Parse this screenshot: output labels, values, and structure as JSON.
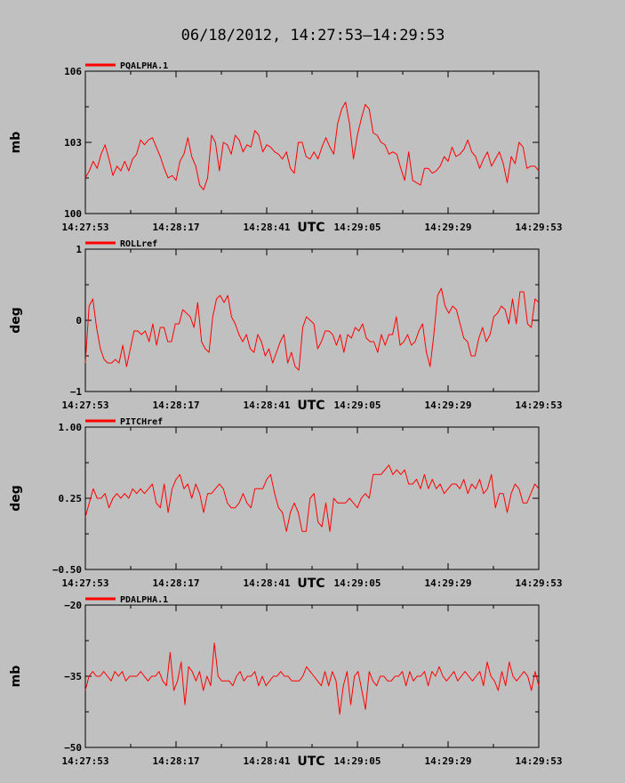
{
  "page_title": "06/18/2012, 14:27:53–14:29:53",
  "x_axis": {
    "ticks": [
      "14:27:53",
      "14:28:17",
      "14:28:41",
      "14:29:05",
      "14:29:29",
      "14:29:53"
    ],
    "unit_label": "UTC"
  },
  "colors": {
    "line": "#ff0000",
    "plot_bg": "#c0c0c0",
    "axis": "#000000"
  },
  "chart_data": [
    {
      "type": "line",
      "legend": "PQALPHA.1",
      "ylabel": "mb",
      "ylim": [
        100,
        106
      ],
      "yticks": [
        "106",
        "103",
        "100"
      ],
      "y": [
        101.5,
        101.8,
        102.2,
        101.9,
        102.5,
        102.9,
        102.3,
        101.6,
        102.0,
        101.8,
        102.2,
        101.8,
        102.3,
        102.5,
        103.1,
        102.9,
        103.1,
        103.2,
        102.8,
        102.4,
        101.9,
        101.5,
        101.6,
        101.4,
        102.2,
        102.5,
        103.2,
        102.4,
        102.0,
        101.2,
        101.0,
        101.5,
        103.3,
        103.0,
        101.8,
        103.0,
        102.9,
        102.5,
        103.3,
        103.1,
        102.6,
        102.9,
        102.8,
        103.5,
        103.3,
        102.6,
        102.9,
        102.8,
        102.6,
        102.5,
        102.3,
        102.6,
        101.9,
        101.7,
        103.0,
        103.0,
        102.4,
        102.3,
        102.6,
        102.3,
        102.8,
        103.2,
        102.8,
        102.5,
        103.8,
        104.4,
        104.7,
        103.8,
        102.3,
        103.3,
        104.0,
        104.6,
        104.4,
        103.4,
        103.3,
        103.0,
        102.9,
        102.5,
        102.6,
        102.5,
        101.9,
        101.4,
        102.6,
        101.4,
        101.3,
        101.2,
        101.9,
        101.9,
        101.7,
        101.8,
        102.0,
        102.4,
        102.2,
        102.8,
        102.4,
        102.5,
        102.7,
        103.1,
        102.6,
        102.4,
        101.9,
        102.3,
        102.6,
        102.0,
        102.3,
        102.6,
        102.1,
        101.3,
        102.4,
        102.1,
        103.0,
        102.8,
        101.9,
        102.0,
        102.0,
        101.8
      ]
    },
    {
      "type": "line",
      "legend": "ROLLref",
      "ylabel": "deg",
      "ylim": [
        -1,
        1
      ],
      "yticks": [
        "1",
        "0",
        "−1"
      ],
      "y": [
        -0.6,
        0.2,
        0.3,
        -0.1,
        -0.4,
        -0.55,
        -0.6,
        -0.6,
        -0.55,
        -0.6,
        -0.35,
        -0.65,
        -0.4,
        -0.15,
        -0.15,
        -0.2,
        -0.15,
        -0.3,
        -0.05,
        -0.35,
        -0.1,
        -0.1,
        -0.3,
        -0.3,
        -0.05,
        -0.05,
        0.15,
        0.1,
        0.05,
        -0.1,
        0.25,
        -0.3,
        -0.4,
        -0.45,
        0.05,
        0.3,
        0.35,
        0.25,
        0.35,
        0.05,
        -0.05,
        -0.2,
        -0.3,
        -0.2,
        -0.4,
        -0.45,
        -0.2,
        -0.3,
        -0.5,
        -0.4,
        -0.6,
        -0.45,
        -0.3,
        -0.2,
        -0.6,
        -0.45,
        -0.65,
        -0.7,
        -0.1,
        0.05,
        0.0,
        -0.05,
        -0.4,
        -0.3,
        -0.15,
        -0.15,
        -0.2,
        -0.35,
        -0.2,
        -0.45,
        -0.2,
        -0.25,
        -0.1,
        -0.15,
        -0.05,
        -0.25,
        -0.3,
        -0.3,
        -0.45,
        -0.2,
        -0.35,
        -0.2,
        -0.2,
        0.05,
        -0.35,
        -0.3,
        -0.2,
        -0.35,
        -0.3,
        -0.15,
        -0.05,
        -0.45,
        -0.65,
        -0.2,
        0.35,
        0.45,
        0.2,
        0.1,
        0.2,
        0.15,
        -0.05,
        -0.25,
        -0.3,
        -0.5,
        -0.5,
        -0.25,
        -0.1,
        -0.3,
        -0.2,
        0.05,
        0.1,
        0.2,
        0.15,
        -0.05,
        0.3,
        -0.05,
        0.4,
        0.4,
        -0.05,
        -0.1,
        0.3,
        0.25
      ]
    },
    {
      "type": "line",
      "legend": "PITCHref",
      "ylabel": "deg",
      "ylim": [
        -0.5,
        1.0
      ],
      "yticks": [
        "1.00",
        "0.25",
        "−0.50"
      ],
      "y": [
        0.05,
        0.2,
        0.35,
        0.25,
        0.25,
        0.3,
        0.15,
        0.25,
        0.3,
        0.25,
        0.3,
        0.25,
        0.35,
        0.3,
        0.35,
        0.3,
        0.35,
        0.4,
        0.2,
        0.15,
        0.4,
        0.1,
        0.35,
        0.45,
        0.5,
        0.35,
        0.4,
        0.25,
        0.4,
        0.3,
        0.1,
        0.3,
        0.3,
        0.35,
        0.4,
        0.35,
        0.2,
        0.15,
        0.15,
        0.2,
        0.3,
        0.2,
        0.15,
        0.35,
        0.35,
        0.35,
        0.45,
        0.5,
        0.3,
        0.15,
        0.1,
        -0.1,
        0.1,
        0.2,
        0.1,
        -0.1,
        -0.1,
        0.25,
        0.3,
        0.0,
        -0.05,
        0.2,
        -0.1,
        0.25,
        0.2,
        0.2,
        0.2,
        0.25,
        0.2,
        0.15,
        0.25,
        0.3,
        0.25,
        0.5,
        0.5,
        0.5,
        0.55,
        0.6,
        0.5,
        0.55,
        0.5,
        0.55,
        0.4,
        0.4,
        0.45,
        0.35,
        0.5,
        0.35,
        0.45,
        0.35,
        0.4,
        0.3,
        0.35,
        0.4,
        0.4,
        0.35,
        0.45,
        0.3,
        0.4,
        0.35,
        0.45,
        0.3,
        0.35,
        0.5,
        0.15,
        0.3,
        0.3,
        0.1,
        0.3,
        0.4,
        0.35,
        0.2,
        0.2,
        0.3,
        0.4,
        0.35
      ]
    },
    {
      "type": "line",
      "legend": "PDALPHA.1",
      "ylabel": "mb",
      "ylim": [
        -50,
        -20
      ],
      "yticks": [
        "−20",
        "−35",
        "−50"
      ],
      "y": [
        -38,
        -35,
        -34,
        -35,
        -35,
        -34,
        -35,
        -36,
        -34,
        -35,
        -34,
        -36,
        -35,
        -35,
        -35,
        -34,
        -35,
        -36,
        -35,
        -35,
        -34,
        -36,
        -37,
        -30,
        -38,
        -36,
        -32,
        -41,
        -33,
        -34,
        -36,
        -34,
        -38,
        -35,
        -37,
        -28,
        -35,
        -36,
        -36,
        -36,
        -37,
        -35,
        -34,
        -36,
        -35,
        -35,
        -34,
        -37,
        -35,
        -37,
        -36,
        -35,
        -35,
        -34,
        -35,
        -35,
        -36,
        -36,
        -36,
        -35,
        -33,
        -34,
        -35,
        -36,
        -37,
        -34,
        -37,
        -34,
        -36,
        -43,
        -37,
        -34,
        -41,
        -35,
        -34,
        -38,
        -42,
        -34,
        -36,
        -37,
        -35,
        -35,
        -36,
        -36,
        -35,
        -35,
        -34,
        -37,
        -34,
        -36,
        -35,
        -35,
        -34,
        -37,
        -34,
        -35,
        -33,
        -35,
        -36,
        -35,
        -34,
        -36,
        -35,
        -34,
        -35,
        -36,
        -35,
        -34,
        -37,
        -32,
        -35,
        -36,
        -38,
        -34,
        -37,
        -32,
        -35,
        -36,
        -35,
        -34,
        -35,
        -38,
        -34,
        -37
      ]
    }
  ]
}
